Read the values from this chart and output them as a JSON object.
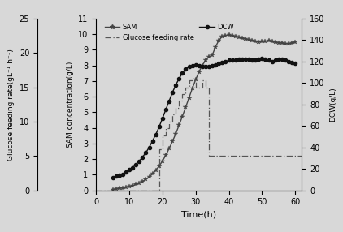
{
  "xlabel": "Time(h)",
  "ylabel_sam": "SAM concentration(g/L)",
  "ylabel_glucose": "Glucose feeding rate(gL⁻¹ h⁻¹)",
  "ylabel_dcw": "DCW(g/L)",
  "xlim": [
    0,
    62
  ],
  "ylim_sam": [
    0,
    11
  ],
  "ylim_glucose": [
    0,
    25
  ],
  "ylim_dcw": [
    0,
    160
  ],
  "xticks": [
    0,
    10,
    20,
    30,
    40,
    50,
    60
  ],
  "yticks_sam": [
    0,
    1,
    2,
    3,
    4,
    5,
    6,
    7,
    8,
    9,
    10,
    11
  ],
  "yticks_glucose": [
    0,
    5,
    10,
    15,
    20,
    25
  ],
  "yticks_dcw": [
    0,
    20,
    40,
    60,
    80,
    100,
    120,
    140,
    160
  ],
  "dcw_x": [
    5,
    6,
    7,
    8,
    9,
    10,
    11,
    12,
    13,
    14,
    15,
    16,
    17,
    18,
    19,
    20,
    21,
    22,
    23,
    24,
    25,
    26,
    27,
    28,
    29,
    30,
    31,
    32,
    33,
    34,
    35,
    36,
    37,
    38,
    39,
    40,
    41,
    42,
    43,
    44,
    45,
    46,
    47,
    48,
    49,
    50,
    51,
    52,
    53,
    54,
    55,
    56,
    57,
    58,
    59,
    60
  ],
  "dcw_y": [
    12,
    13,
    14,
    15,
    17,
    19,
    21,
    24,
    27,
    31,
    35,
    40,
    46,
    52,
    59,
    67,
    75,
    83,
    91,
    98,
    104,
    109,
    113,
    115,
    116,
    117,
    116,
    115,
    115,
    115,
    116,
    117,
    118,
    119,
    120,
    121,
    121,
    121,
    122,
    122,
    122,
    122,
    121,
    121,
    122,
    123,
    122,
    121,
    120,
    121,
    122,
    122,
    121,
    120,
    119,
    118
  ],
  "sam_x": [
    5,
    6,
    7,
    8,
    9,
    10,
    11,
    12,
    13,
    14,
    15,
    16,
    17,
    18,
    19,
    20,
    21,
    22,
    23,
    24,
    25,
    26,
    27,
    28,
    29,
    30,
    31,
    32,
    33,
    34,
    35,
    36,
    37,
    38,
    39,
    40,
    41,
    42,
    43,
    44,
    45,
    46,
    47,
    48,
    49,
    50,
    51,
    52,
    53,
    54,
    55,
    56,
    57,
    58,
    59,
    60
  ],
  "sam_y": [
    0.05,
    0.08,
    0.11,
    0.15,
    0.19,
    0.24,
    0.3,
    0.37,
    0.46,
    0.57,
    0.7,
    0.86,
    1.05,
    1.28,
    1.55,
    1.87,
    2.24,
    2.66,
    3.12,
    3.62,
    4.16,
    4.73,
    5.32,
    5.92,
    6.52,
    7.08,
    7.58,
    8.0,
    8.32,
    8.55,
    8.65,
    9.2,
    9.6,
    9.85,
    9.92,
    9.95,
    9.9,
    9.85,
    9.8,
    9.75,
    9.7,
    9.65,
    9.6,
    9.55,
    9.5,
    9.52,
    9.55,
    9.58,
    9.52,
    9.48,
    9.45,
    9.42,
    9.4,
    9.38,
    9.42,
    9.48
  ],
  "glucose_steps_x": [
    0,
    19,
    19,
    20,
    20,
    21,
    21,
    22,
    22,
    23,
    23,
    24,
    24,
    25,
    25,
    26,
    26,
    27,
    27,
    28,
    28,
    29,
    29,
    30,
    30,
    31,
    31,
    32,
    32,
    33,
    33,
    34,
    34,
    35,
    35,
    36,
    36,
    62
  ],
  "glucose_steps_y": [
    0,
    0,
    6,
    6,
    8,
    8,
    9,
    9,
    10,
    10,
    11,
    11,
    12,
    12,
    13,
    13,
    14,
    14,
    15,
    15,
    16,
    16,
    16,
    16,
    15,
    15,
    15,
    15,
    16,
    16,
    15,
    15,
    5,
    5,
    5,
    5,
    5,
    5
  ],
  "color_sam": "#444444",
  "color_dcw": "#111111",
  "color_glucose": "#555555",
  "bg_color": "#d8d8d8",
  "figsize": [
    4.22,
    2.86
  ],
  "dpi": 100
}
